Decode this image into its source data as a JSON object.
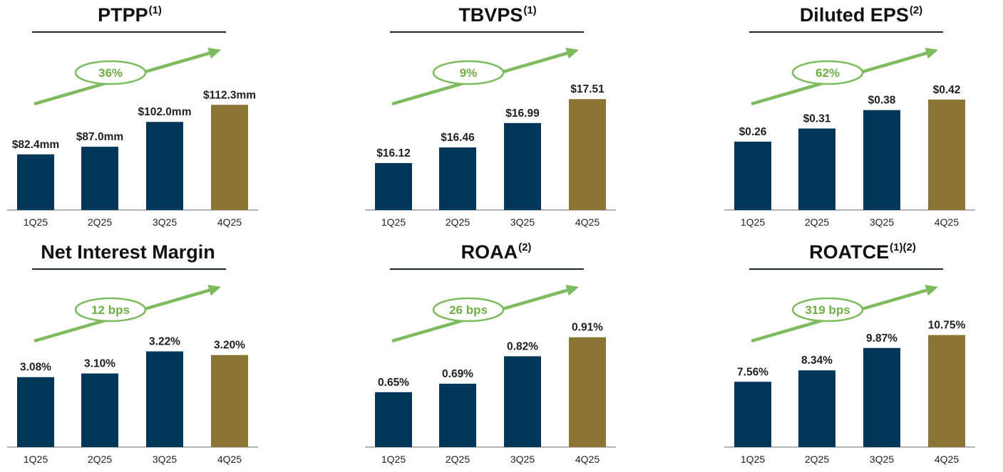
{
  "colors": {
    "bar": "#02375a",
    "bar_highlight": "#8b7434",
    "arrow": "#7dbb5e",
    "growth_text": "#70ad47",
    "rule": "#1a2a3a",
    "axis": "#666666"
  },
  "chart_data": [
    {
      "type": "bar",
      "title": "PTPP",
      "title_note": "(1)",
      "categories": [
        "1Q25",
        "2Q25",
        "3Q25",
        "4Q25"
      ],
      "values": [
        82.4,
        87.0,
        102.0,
        112.3
      ],
      "value_labels": [
        "$82.4mm",
        "$87.0mm",
        "$102.0mm",
        "$112.3mm"
      ],
      "highlight_index": 3,
      "growth_label": "36%",
      "ylim": [
        48.8,
        126.6
      ],
      "xlabel": "",
      "ylabel": ""
    },
    {
      "type": "bar",
      "title": "TBVPS",
      "title_note": "(1)",
      "categories": [
        "1Q25",
        "2Q25",
        "3Q25",
        "4Q25"
      ],
      "values": [
        16.12,
        16.46,
        16.99,
        17.51
      ],
      "value_labels": [
        "$16.12",
        "$16.46",
        "$16.99",
        "$17.51"
      ],
      "highlight_index": 3,
      "growth_label": "9%",
      "ylim": [
        15.1,
        17.9
      ],
      "xlabel": "",
      "ylabel": ""
    },
    {
      "type": "bar",
      "title": "Diluted EPS",
      "title_note": "(2)",
      "categories": [
        "1Q25",
        "2Q25",
        "3Q25",
        "4Q25"
      ],
      "values": [
        0.26,
        0.31,
        0.38,
        0.42
      ],
      "value_labels": [
        "$0.26",
        "$0.31",
        "$0.38",
        "$0.42"
      ],
      "highlight_index": 3,
      "growth_label": "62%",
      "ylim": [
        0.0,
        0.49
      ],
      "xlabel": "",
      "ylabel": ""
    },
    {
      "type": "bar",
      "title": "Net Interest Margin",
      "title_note": "",
      "categories": [
        "1Q25",
        "2Q25",
        "3Q25",
        "4Q25"
      ],
      "values": [
        3.08,
        3.1,
        3.22,
        3.2
      ],
      "value_labels": [
        "3.08%",
        "3.10%",
        "3.22%",
        "3.20%"
      ],
      "highlight_index": 3,
      "growth_label": "12 bps",
      "ylim": [
        2.7,
        3.4
      ],
      "xlabel": "",
      "ylabel": ""
    },
    {
      "type": "bar",
      "title": "ROAA",
      "title_note": "(2)",
      "categories": [
        "1Q25",
        "2Q25",
        "3Q25",
        "4Q25"
      ],
      "values": [
        0.65,
        0.69,
        0.82,
        0.91
      ],
      "value_labels": [
        "0.65%",
        "0.69%",
        "0.82%",
        "0.91%"
      ],
      "highlight_index": 3,
      "growth_label": "26 bps",
      "ylim": [
        0.39,
        1.0
      ],
      "xlabel": "",
      "ylabel": ""
    },
    {
      "type": "bar",
      "title": "ROATCE",
      "title_note": "(1)(2)",
      "categories": [
        "1Q25",
        "2Q25",
        "3Q25",
        "4Q25"
      ],
      "values": [
        7.56,
        8.34,
        9.87,
        10.75
      ],
      "value_labels": [
        "7.56%",
        "8.34%",
        "9.87%",
        "10.75%"
      ],
      "highlight_index": 3,
      "growth_label": "319 bps",
      "ylim": [
        3.1,
        11.9
      ],
      "xlabel": "",
      "ylabel": ""
    }
  ]
}
